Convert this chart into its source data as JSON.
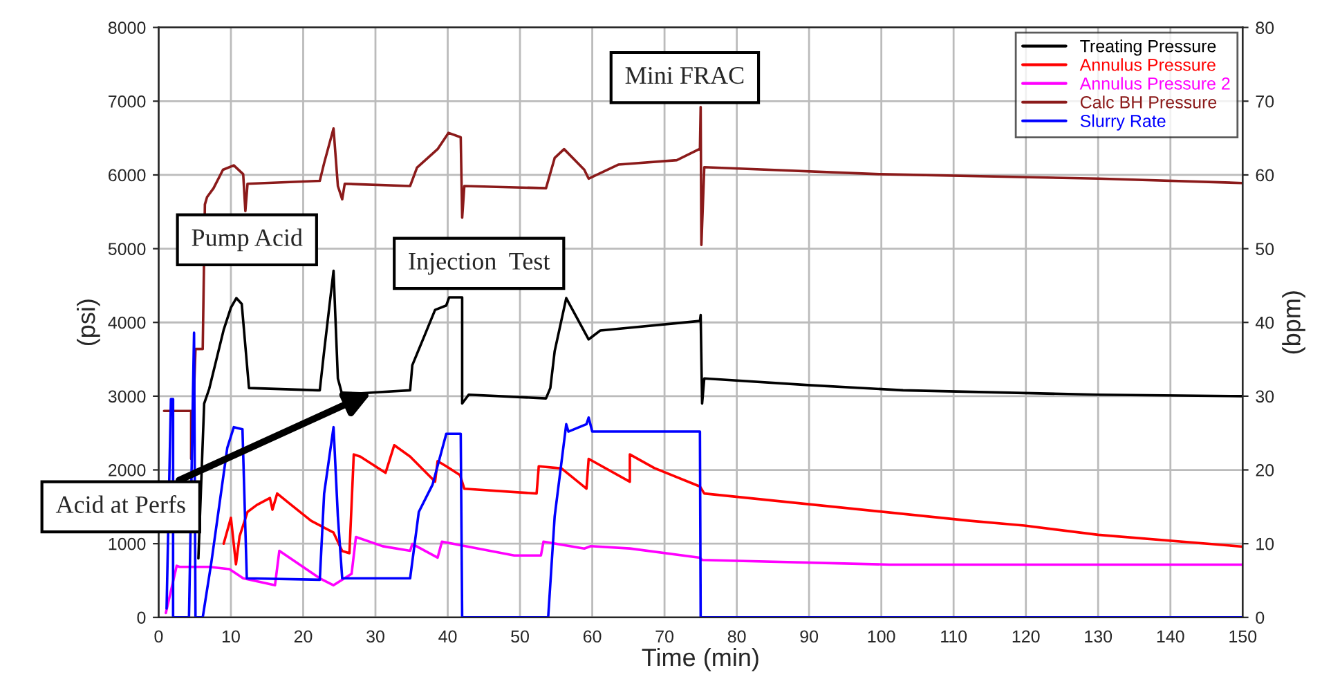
{
  "chart_data": {
    "type": "line",
    "xlabel": "Time (min)",
    "ylabel": "(psi)",
    "y2label": "(bpm)",
    "xlim": [
      0,
      150
    ],
    "xticks": [
      0,
      10,
      20,
      30,
      40,
      50,
      60,
      70,
      80,
      90,
      100,
      110,
      120,
      130,
      140,
      150
    ],
    "ylim": [
      0,
      8000
    ],
    "yticks": [
      0,
      1000,
      2000,
      3000,
      4000,
      5000,
      6000,
      7000,
      8000
    ],
    "y2lim": [
      0,
      80
    ],
    "y2ticks": [
      0,
      10,
      20,
      30,
      40,
      50,
      60,
      70,
      80
    ],
    "grid": true,
    "legend": "top right",
    "line_style": "solid",
    "marker": "none",
    "series": [
      {
        "name": "Treating Pressure",
        "color": "#000000",
        "x": [
          5.5,
          6.3,
          7,
          8,
          9,
          10,
          10.75,
          11.5,
          12.5,
          22,
          22.3,
          22.9,
          24.2,
          24.8,
          25.4,
          29.8,
          34.8,
          35.1,
          36.7,
          38.25,
          39.8,
          40.2,
          42,
          42,
          42.9,
          53.6,
          54.2,
          54.8,
          56.4,
          59.5,
          61.1,
          74.9,
          75,
          75.2,
          75.5,
          89.9,
          103,
          129.9,
          150
        ],
        "values": [
          800,
          2900,
          3100,
          3500,
          3900,
          4200,
          4330,
          4250,
          3110,
          3080,
          3080,
          3610,
          4700,
          3240,
          3020,
          3050,
          3080,
          3420,
          3800,
          4170,
          4230,
          4340,
          4340,
          2900,
          3020,
          2970,
          3110,
          3610,
          4330,
          3770,
          3890,
          4020,
          4100,
          2900,
          3240,
          3150,
          3080,
          3020,
          3000
        ]
      },
      {
        "name": "Annulus Pressure",
        "color": "#ff0000",
        "x": [
          9,
          10,
          10.7,
          11.2,
          12.3,
          13.6,
          15.4,
          15.75,
          16.4,
          17.9,
          21.1,
          24.2,
          25.4,
          26.4,
          27,
          27.9,
          31.4,
          32.6,
          34.8,
          38.25,
          38.6,
          39.8,
          41.7,
          42.3,
          52.3,
          52.6,
          55.75,
          59.2,
          59.5,
          65.2,
          65.2,
          68.6,
          74.9,
          75.5,
          112.3,
          119.8,
          130,
          150
        ],
        "values": [
          1000,
          1350,
          720,
          1100,
          1430,
          1525,
          1620,
          1460,
          1680,
          1560,
          1310,
          1150,
          900,
          870,
          2210,
          2180,
          1960,
          2335,
          2180,
          1840,
          2120,
          2050,
          1930,
          1745,
          1680,
          2050,
          2020,
          1745,
          2150,
          1840,
          2210,
          2025,
          1775,
          1680,
          1310,
          1245,
          1120,
          960
        ]
      },
      {
        "name": "Annulus Pressure 2",
        "color": "#ff00ff",
        "x": [
          1,
          2.5,
          2.9,
          7,
          9.8,
          11.7,
          16.1,
          16.7,
          22.3,
          24.2,
          26.7,
          27.3,
          31,
          34.8,
          35.1,
          38.6,
          39.2,
          49.2,
          52.9,
          53.25,
          58.9,
          59.8,
          65.2,
          74.9,
          75.2,
          101.1,
          150
        ],
        "values": [
          60,
          700,
          685,
          685,
          654,
          530,
          436,
          903,
          530,
          436,
          592,
          1090,
          965,
          903,
          996,
          810,
          1027,
          840,
          840,
          1027,
          934,
          966,
          935,
          810,
          779,
          716,
          716
        ]
      },
      {
        "name": "Calc BH Pressure",
        "color": "#8b1a1a",
        "x": [
          0.75,
          4.5,
          4.5,
          4.8,
          5.1,
          6.1,
          6.4,
          6.7,
          7.6,
          8.9,
          10.4,
          11.7,
          12,
          12.3,
          22.3,
          22.9,
          24.2,
          24.8,
          25.4,
          25.75,
          34.8,
          35.75,
          38.6,
          40.1,
          41.8,
          42,
          42.3,
          53.6,
          54.8,
          56.1,
          58.9,
          59.5,
          63.6,
          71.7,
          74.9,
          75,
          75.1,
          75.5,
          99.9,
          130,
          150
        ],
        "values": [
          2800,
          2800,
          2150,
          2800,
          3640,
          3640,
          5600,
          5700,
          5820,
          6070,
          6130,
          6010,
          5510,
          5880,
          5920,
          6160,
          6630,
          5850,
          5670,
          5880,
          5850,
          6100,
          6350,
          6570,
          6510,
          5420,
          5850,
          5820,
          6230,
          6350,
          6070,
          5950,
          6140,
          6200,
          6355,
          6920,
          5050,
          6105,
          6010,
          5950,
          5890
        ]
      },
      {
        "name": "Slurry Rate",
        "color": "#0000ff",
        "axis": "y2",
        "x": [
          1.1,
          1.7,
          2,
          2,
          4.2,
          4.9,
          5.1,
          6.1,
          7.3,
          9.5,
          10.4,
          11.6,
          12.2,
          22.3,
          22.9,
          24.2,
          24.8,
          25.4,
          34.8,
          36,
          37.9,
          39.8,
          41.8,
          42,
          53.9,
          54.8,
          56.4,
          56.7,
          59.2,
          59.5,
          60,
          74.9,
          75,
          150
        ],
        "values": [
          1.2,
          29.6,
          29.6,
          0,
          0,
          38.6,
          0,
          0,
          7.5,
          23,
          25.8,
          25.5,
          5.3,
          5.1,
          16.8,
          25.8,
          13.7,
          5.3,
          5.3,
          14.3,
          18,
          24.9,
          24.9,
          0,
          0,
          13.7,
          26.2,
          25.2,
          26.2,
          27.1,
          25.2,
          25.2,
          0,
          0
        ]
      }
    ],
    "annotations": [
      "Pump Acid",
      "Injection  Test",
      "Mini FRAC",
      {
        "text": "Acid at Perfs",
        "x": 29.5,
        "y": 3050
      }
    ]
  }
}
